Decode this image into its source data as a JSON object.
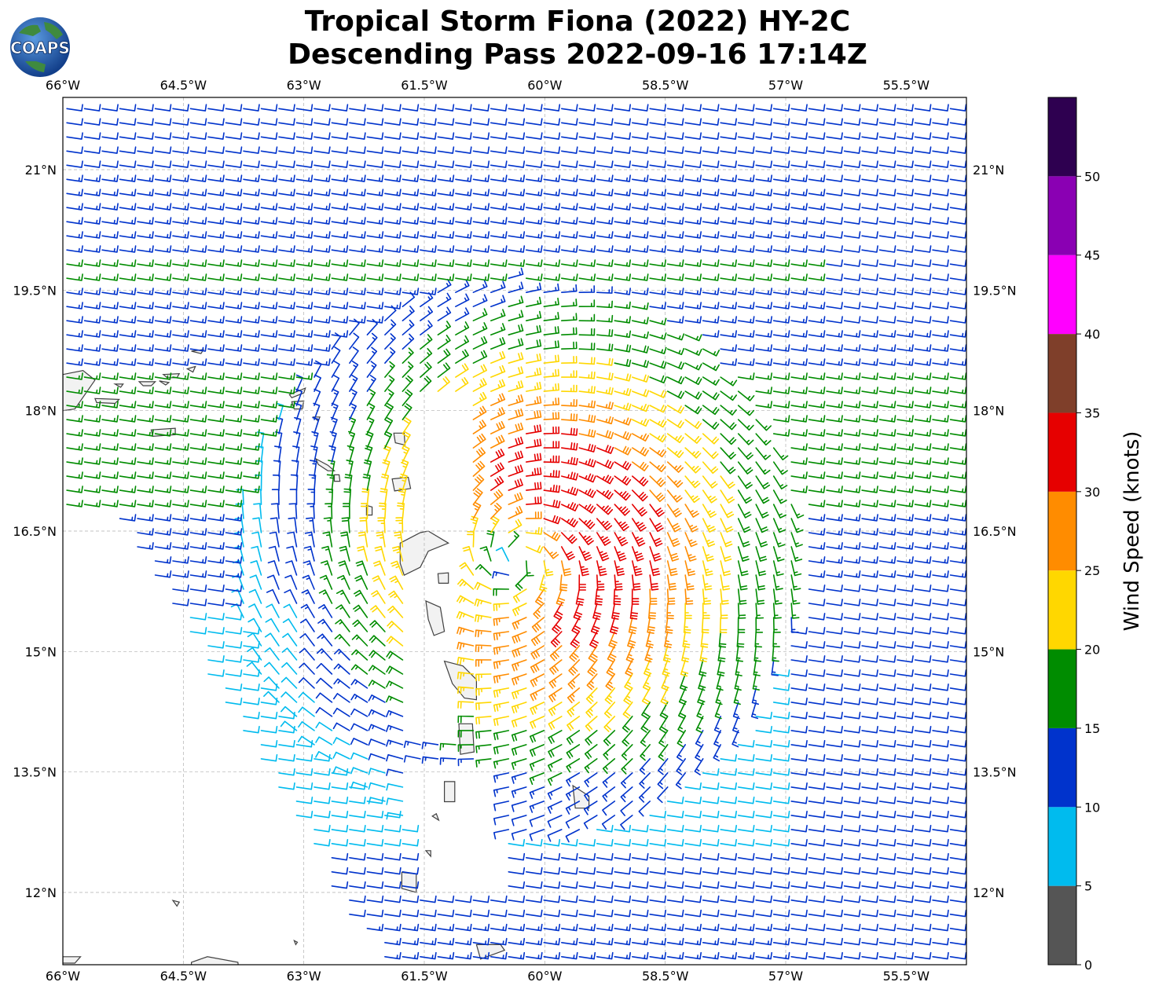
{
  "title_line_1": "Tropical Storm Fiona (2022) HY-2C",
  "title_line_2": "Descending Pass 2022-09-16 17:14Z",
  "logo_text": "COAPS",
  "colors": {
    "gray": "#555555",
    "cyan": "#00bbee",
    "blue": "#0033cc",
    "green": "#008c00",
    "yellow": "#ffd700",
    "orange": "#ff8c00",
    "red": "#e60000",
    "brown": "#7f3f2a",
    "magenta": "#ff00ff",
    "purple": "#8a00b3",
    "darkpurple": "#2e0050",
    "land": "#f2f2f2",
    "coast": "#404040",
    "grid": "#b0b0b0"
  },
  "chart_data": {
    "type": "map",
    "projection": "plate-carree",
    "lon_range": [
      -66.0,
      -54.75
    ],
    "lat_range": [
      11.1,
      21.9
    ],
    "lon_ticks": [
      -66.0,
      -64.5,
      -63.0,
      -61.5,
      -60.0,
      -58.5,
      -57.0,
      -55.5
    ],
    "lat_ticks": [
      12.0,
      13.5,
      15.0,
      16.5,
      18.0,
      19.5,
      21.0
    ],
    "lon_tick_labels": [
      "66°W",
      "64.5°W",
      "63°W",
      "61.5°W",
      "60°W",
      "58.5°W",
      "57°W",
      "55.5°W"
    ],
    "lat_tick_labels": [
      "12°N",
      "13.5°N",
      "15°N",
      "16.5°N",
      "18°N",
      "19.5°N",
      "21°N"
    ],
    "grid": true,
    "storm_center": {
      "lon": -60.35,
      "lat": 16.15
    },
    "colorbar": {
      "label": "Wind Speed (knots)",
      "ticks": [
        0,
        5,
        10,
        15,
        20,
        25,
        30,
        35,
        40,
        45,
        50
      ],
      "tick_labels": [
        "0",
        "5",
        "10",
        "15",
        "20",
        "25",
        "30",
        "35",
        "40",
        "45",
        "50"
      ],
      "segments": [
        {
          "min": 0,
          "max": 5,
          "color": "#555555"
        },
        {
          "min": 5,
          "max": 10,
          "color": "#00bbee"
        },
        {
          "min": 10,
          "max": 15,
          "color": "#0033cc"
        },
        {
          "min": 15,
          "max": 20,
          "color": "#008c00"
        },
        {
          "min": 20,
          "max": 25,
          "color": "#ffd700"
        },
        {
          "min": 25,
          "max": 30,
          "color": "#ff8c00"
        },
        {
          "min": 30,
          "max": 35,
          "color": "#e60000"
        },
        {
          "min": 35,
          "max": 40,
          "color": "#7f3f2a"
        },
        {
          "min": 40,
          "max": 45,
          "color": "#ff00ff"
        },
        {
          "min": 45,
          "max": 50,
          "color": "#8a00b3"
        },
        {
          "min": 50,
          "max": 55,
          "color": "#2e0050"
        }
      ]
    },
    "islands": [
      {
        "name": "puerto-rico-east",
        "pts": [
          [
            -66.0,
            18.45
          ],
          [
            -65.75,
            18.5
          ],
          [
            -65.6,
            18.38
          ],
          [
            -65.85,
            18.02
          ],
          [
            -66.0,
            18.0
          ]
        ]
      },
      {
        "name": "vieques",
        "pts": [
          [
            -65.6,
            18.15
          ],
          [
            -65.3,
            18.14
          ],
          [
            -65.35,
            18.09
          ],
          [
            -65.58,
            18.1
          ]
        ]
      },
      {
        "name": "culebra",
        "pts": [
          [
            -65.35,
            18.33
          ],
          [
            -65.25,
            18.33
          ],
          [
            -65.28,
            18.29
          ]
        ]
      },
      {
        "name": "st-thomas",
        "pts": [
          [
            -65.05,
            18.36
          ],
          [
            -64.85,
            18.36
          ],
          [
            -64.9,
            18.31
          ],
          [
            -65.0,
            18.31
          ]
        ]
      },
      {
        "name": "st-john",
        "pts": [
          [
            -64.8,
            18.37
          ],
          [
            -64.68,
            18.35
          ],
          [
            -64.72,
            18.32
          ]
        ]
      },
      {
        "name": "tortola",
        "pts": [
          [
            -64.75,
            18.45
          ],
          [
            -64.55,
            18.46
          ],
          [
            -64.58,
            18.41
          ],
          [
            -64.7,
            18.41
          ]
        ]
      },
      {
        "name": "virgin-gorda",
        "pts": [
          [
            -64.45,
            18.52
          ],
          [
            -64.35,
            18.55
          ],
          [
            -64.38,
            18.48
          ]
        ]
      },
      {
        "name": "anegada",
        "pts": [
          [
            -64.4,
            18.74
          ],
          [
            -64.25,
            18.76
          ],
          [
            -64.28,
            18.71
          ]
        ]
      },
      {
        "name": "st-croix",
        "pts": [
          [
            -64.9,
            17.76
          ],
          [
            -64.6,
            17.78
          ],
          [
            -64.6,
            17.7
          ],
          [
            -64.88,
            17.68
          ]
        ]
      },
      {
        "name": "anguilla",
        "pts": [
          [
            -63.18,
            18.2
          ],
          [
            -62.98,
            18.28
          ],
          [
            -63.0,
            18.22
          ],
          [
            -63.15,
            18.16
          ]
        ]
      },
      {
        "name": "st-martin",
        "pts": [
          [
            -63.15,
            18.11
          ],
          [
            -63.0,
            18.12
          ],
          [
            -63.02,
            18.02
          ],
          [
            -63.12,
            18.02
          ]
        ]
      },
      {
        "name": "st-barth",
        "pts": [
          [
            -62.88,
            17.92
          ],
          [
            -62.8,
            17.92
          ],
          [
            -62.82,
            17.87
          ]
        ]
      },
      {
        "name": "barbuda",
        "pts": [
          [
            -61.88,
            17.72
          ],
          [
            -61.75,
            17.72
          ],
          [
            -61.74,
            17.57
          ],
          [
            -61.86,
            17.6
          ]
        ]
      },
      {
        "name": "antigua",
        "pts": [
          [
            -61.9,
            17.15
          ],
          [
            -61.7,
            17.17
          ],
          [
            -61.67,
            17.03
          ],
          [
            -61.87,
            17.0
          ]
        ]
      },
      {
        "name": "st-kitts",
        "pts": [
          [
            -62.85,
            17.4
          ],
          [
            -62.7,
            17.32
          ],
          [
            -62.62,
            17.25
          ],
          [
            -62.7,
            17.25
          ],
          [
            -62.82,
            17.33
          ]
        ]
      },
      {
        "name": "nevis",
        "pts": [
          [
            -62.62,
            17.2
          ],
          [
            -62.56,
            17.2
          ],
          [
            -62.55,
            17.12
          ],
          [
            -62.62,
            17.12
          ]
        ]
      },
      {
        "name": "montserrat",
        "pts": [
          [
            -62.22,
            16.82
          ],
          [
            -62.15,
            16.8
          ],
          [
            -62.15,
            16.7
          ],
          [
            -62.22,
            16.7
          ]
        ]
      },
      {
        "name": "guadeloupe",
        "pts": [
          [
            -61.8,
            16.35
          ],
          [
            -61.55,
            16.48
          ],
          [
            -61.45,
            16.5
          ],
          [
            -61.2,
            16.35
          ],
          [
            -61.45,
            16.25
          ],
          [
            -61.55,
            16.05
          ],
          [
            -61.75,
            15.95
          ],
          [
            -61.8,
            16.1
          ]
        ]
      },
      {
        "name": "marie-galante",
        "pts": [
          [
            -61.33,
            15.97
          ],
          [
            -61.2,
            15.98
          ],
          [
            -61.2,
            15.85
          ],
          [
            -61.32,
            15.85
          ]
        ]
      },
      {
        "name": "dominica",
        "pts": [
          [
            -61.48,
            15.63
          ],
          [
            -61.3,
            15.55
          ],
          [
            -61.25,
            15.25
          ],
          [
            -61.38,
            15.2
          ],
          [
            -61.45,
            15.4
          ]
        ]
      },
      {
        "name": "martinique",
        "pts": [
          [
            -61.25,
            14.88
          ],
          [
            -61.02,
            14.82
          ],
          [
            -60.85,
            14.65
          ],
          [
            -60.85,
            14.4
          ],
          [
            -61.0,
            14.42
          ],
          [
            -61.15,
            14.6
          ]
        ]
      },
      {
        "name": "st-lucia",
        "pts": [
          [
            -61.07,
            14.1
          ],
          [
            -60.9,
            14.1
          ],
          [
            -60.88,
            13.75
          ],
          [
            -61.05,
            13.72
          ]
        ]
      },
      {
        "name": "st-vincent",
        "pts": [
          [
            -61.25,
            13.38
          ],
          [
            -61.12,
            13.38
          ],
          [
            -61.12,
            13.13
          ],
          [
            -61.25,
            13.13
          ]
        ]
      },
      {
        "name": "barbados",
        "pts": [
          [
            -59.65,
            13.33
          ],
          [
            -59.45,
            13.2
          ],
          [
            -59.45,
            13.05
          ],
          [
            -59.62,
            13.05
          ]
        ]
      },
      {
        "name": "grenadines",
        "pts": [
          [
            -61.4,
            12.95
          ],
          [
            -61.35,
            12.98
          ],
          [
            -61.32,
            12.9
          ]
        ]
      },
      {
        "name": "carriacou",
        "pts": [
          [
            -61.48,
            12.52
          ],
          [
            -61.42,
            12.52
          ],
          [
            -61.42,
            12.45
          ]
        ]
      },
      {
        "name": "grenada",
        "pts": [
          [
            -61.78,
            12.25
          ],
          [
            -61.6,
            12.23
          ],
          [
            -61.6,
            12.0
          ],
          [
            -61.78,
            12.05
          ]
        ]
      },
      {
        "name": "tobago",
        "pts": [
          [
            -60.85,
            11.35
          ],
          [
            -60.55,
            11.35
          ],
          [
            -60.5,
            11.28
          ],
          [
            -60.8,
            11.17
          ]
        ]
      },
      {
        "name": "margarita",
        "pts": [
          [
            -64.4,
            11.13
          ],
          [
            -64.2,
            11.2
          ],
          [
            -63.82,
            11.13
          ],
          [
            -63.8,
            10.95
          ],
          [
            -64.4,
            10.95
          ]
        ]
      },
      {
        "name": "los-roques",
        "pts": [
          [
            -66.0,
            11.2
          ],
          [
            -65.78,
            11.2
          ],
          [
            -65.85,
            11.12
          ],
          [
            -66.0,
            11.12
          ]
        ]
      },
      {
        "name": "blanquilla",
        "pts": [
          [
            -64.63,
            11.9
          ],
          [
            -64.55,
            11.88
          ],
          [
            -64.58,
            11.83
          ]
        ]
      },
      {
        "name": "los-testigos",
        "pts": [
          [
            -63.12,
            11.4
          ],
          [
            -63.08,
            11.38
          ],
          [
            -63.1,
            11.35
          ]
        ]
      }
    ]
  }
}
